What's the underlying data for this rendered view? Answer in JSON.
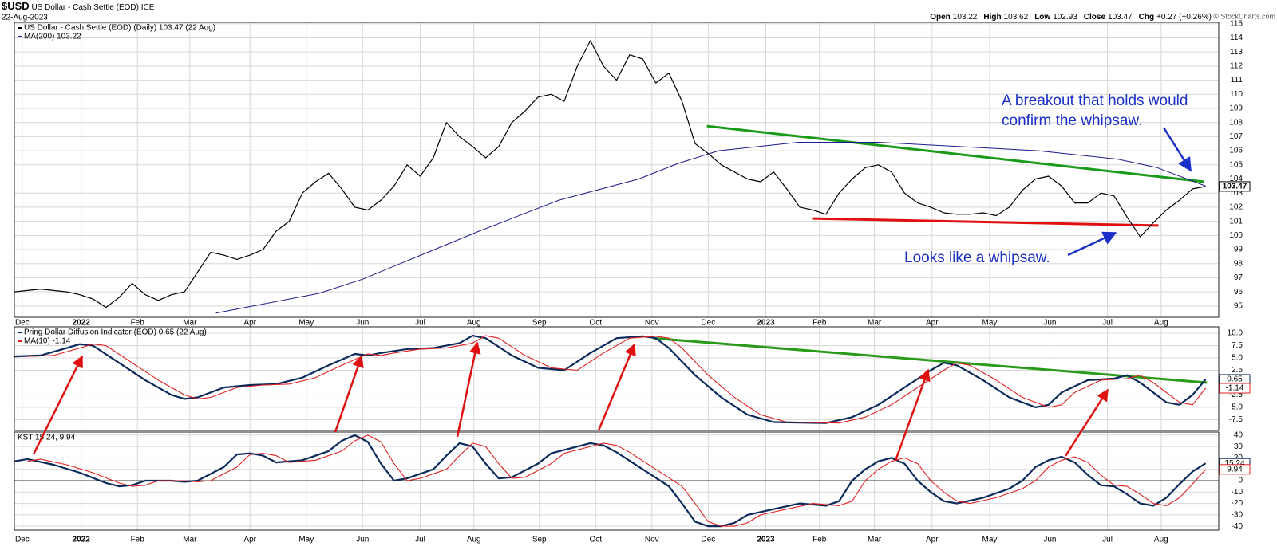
{
  "header": {
    "symbol": "$USD",
    "name": "US Dollar - Cash Settle (EOD) ICE",
    "date": "22-Aug-2023",
    "quote": [
      {
        "label": "Open",
        "value": "103.22"
      },
      {
        "label": "High",
        "value": "103.62"
      },
      {
        "label": "Low",
        "value": "102.93"
      },
      {
        "label": "Close",
        "value": "103.47"
      },
      {
        "label": "Chg",
        "value": "+0.27 (+0.26%)"
      }
    ],
    "copyright": "© StockCharts.com"
  },
  "chart_data": [
    {
      "type": "line",
      "xlim": [
        0,
        92
      ],
      "xticks": [
        {
          "value": 0.6,
          "label": "Dec"
        },
        {
          "value": 5.1,
          "label": "2022"
        },
        {
          "value": 9.4,
          "label": "Feb"
        },
        {
          "value": 13.4,
          "label": "Mar"
        },
        {
          "value": 18.0,
          "label": "Apr"
        },
        {
          "value": 22.3,
          "label": "May"
        },
        {
          "value": 26.6,
          "label": "Jun"
        },
        {
          "value": 31.0,
          "label": "Jul"
        },
        {
          "value": 35.1,
          "label": "Aug"
        },
        {
          "value": 40.1,
          "label": "Sep"
        },
        {
          "value": 44.4,
          "label": "Oct"
        },
        {
          "value": 48.7,
          "label": "Nov"
        },
        {
          "value": 53.0,
          "label": "Dec"
        },
        {
          "value": 57.4,
          "label": "2023"
        },
        {
          "value": 61.5,
          "label": "Feb"
        },
        {
          "value": 65.7,
          "label": "Mar"
        },
        {
          "value": 70.1,
          "label": "Apr"
        },
        {
          "value": 74.5,
          "label": "May"
        },
        {
          "value": 79.1,
          "label": "Jun"
        },
        {
          "value": 83.5,
          "label": "Jul"
        },
        {
          "value": 87.6,
          "label": "Aug"
        }
      ],
      "ylim": [
        94.2,
        115.1
      ],
      "yticks": [
        95,
        96,
        97,
        98,
        99,
        100,
        101,
        102,
        103,
        104,
        105,
        106,
        107,
        108,
        109,
        110,
        111,
        112,
        113,
        114,
        115
      ],
      "grid": true,
      "series": [
        {
          "name": "US Dollar - Cash Settle (EOD) (Daily) 103.47 (22 Aug)",
          "color": "#000000",
          "last_box": true,
          "x": [
            0,
            1,
            2,
            3,
            4,
            5,
            6,
            7,
            8,
            9,
            10,
            11,
            12,
            13,
            14,
            15,
            16,
            17,
            18,
            19,
            20,
            21,
            22,
            23,
            24,
            25,
            26,
            27,
            28,
            29,
            30,
            31,
            32,
            33,
            34,
            35,
            36,
            37,
            38,
            39,
            40,
            41,
            42,
            43,
            44,
            45,
            46,
            47,
            48,
            49,
            50,
            51,
            52,
            53,
            54,
            55,
            56,
            57,
            58,
            59,
            60,
            61,
            62,
            63,
            64,
            65,
            66,
            67,
            68,
            69,
            70,
            71,
            72,
            73,
            74,
            75,
            76,
            77,
            78,
            79,
            80,
            81,
            82,
            83,
            84,
            85,
            86,
            87,
            88,
            89,
            90,
            91
          ],
          "values": [
            96.0,
            96.1,
            96.2,
            96.1,
            96.0,
            95.8,
            95.5,
            94.9,
            95.6,
            96.6,
            95.8,
            95.4,
            95.8,
            96.0,
            97.4,
            98.8,
            98.6,
            98.3,
            98.6,
            99.0,
            100.3,
            101.0,
            103.0,
            103.8,
            104.4,
            103.3,
            102.0,
            101.8,
            102.5,
            103.5,
            105.0,
            104.2,
            105.5,
            108.0,
            107.0,
            106.3,
            105.5,
            106.3,
            108.0,
            108.8,
            109.8,
            110.0,
            109.5,
            112.0,
            113.8,
            112.0,
            111.0,
            112.8,
            112.5,
            110.8,
            111.5,
            109.5,
            106.5,
            105.8,
            105.0,
            104.5,
            104.0,
            103.8,
            104.5,
            103.3,
            102.0,
            101.8,
            101.5,
            103.0,
            104.0,
            104.8,
            105.0,
            104.5,
            103.0,
            102.3,
            102.0,
            101.6,
            101.5,
            101.5,
            101.6,
            101.4,
            102.0,
            103.2,
            104.0,
            104.2,
            103.5,
            102.3,
            102.3,
            103.0,
            102.8,
            101.3,
            99.9,
            100.9,
            101.8,
            102.5,
            103.3,
            103.47
          ]
        },
        {
          "name": "MA(200) 103.22",
          "color": "#1c1c8c",
          "x": [
            15.4,
            23.3,
            26.6,
            35.5,
            41.6,
            47.7,
            50.7,
            53.8,
            59.9,
            66.0,
            72.1,
            78.2,
            84.3,
            87.3,
            91
          ],
          "values": [
            94.5,
            95.9,
            96.9,
            100.3,
            102.5,
            104.0,
            105.1,
            106.0,
            106.6,
            106.6,
            106.3,
            106.0,
            105.4,
            104.8,
            103.5
          ]
        }
      ],
      "trendlines": [
        {
          "color": "#1a9a1a",
          "points": [
            [
              52.9,
              107.75
            ],
            [
              90.9,
              103.8
            ]
          ]
        },
        {
          "color": "#e01010",
          "points": [
            [
              61.0,
              101.2
            ],
            [
              87.4,
              100.7
            ]
          ]
        }
      ],
      "annotations": [
        {
          "lines": [
            "A breakout that holds would",
            "confirm the whipsaw."
          ]
        },
        {
          "lines": [
            "Looks like a whipsaw."
          ]
        }
      ]
    },
    {
      "type": "line",
      "ylim": [
        -9.7,
        11.3
      ],
      "yticks": [
        {
          "value": 10,
          "label": "10.0"
        },
        7.5,
        {
          "value": 5,
          "label": "5.0"
        },
        2.5,
        -2.5,
        {
          "value": -5,
          "label": "-5.0"
        },
        -7.5
      ],
      "grid": true,
      "series": [
        {
          "name": "Pring Dollar Diffusion Indicator (EOD) 0.65 (22 Aug)",
          "color": "#0b2a5c",
          "last_box": true,
          "x": [
            0,
            2,
            4,
            5,
            6,
            8,
            10,
            12,
            13,
            14,
            16,
            18,
            20,
            22,
            24,
            26,
            27,
            28,
            30,
            32,
            34,
            35,
            36,
            38,
            40,
            42,
            44,
            46,
            48,
            49,
            50,
            52,
            54,
            56,
            58,
            60,
            62,
            64,
            66,
            68,
            70,
            71,
            72,
            74,
            76,
            78,
            79,
            80,
            82,
            84,
            85,
            86,
            88,
            89,
            90,
            91
          ],
          "values": [
            5.3,
            5.5,
            7.0,
            7.8,
            7.5,
            4.0,
            0.5,
            -2.5,
            -3.3,
            -3.0,
            -1.0,
            -0.5,
            -0.3,
            1.0,
            3.5,
            5.8,
            5.5,
            6.0,
            6.8,
            7.0,
            8.0,
            9.5,
            9.0,
            5.5,
            3.0,
            2.5,
            6.0,
            9.0,
            9.4,
            9.0,
            7.0,
            1.5,
            -3.0,
            -6.5,
            -8.0,
            -8.1,
            -8.2,
            -7.0,
            -4.5,
            -1.0,
            2.5,
            4.0,
            3.5,
            0.5,
            -3.0,
            -5.0,
            -4.5,
            -2.0,
            0.5,
            0.8,
            1.5,
            0.0,
            -4.0,
            -4.5,
            -2.5,
            0.65
          ]
        },
        {
          "name": "MA(10) -1.14",
          "color": "#e02020",
          "last_box": true,
          "x": [
            1,
            3,
            5,
            6,
            7,
            9,
            11,
            13,
            14,
            15,
            17,
            19,
            21,
            23,
            25,
            27,
            28,
            29,
            31,
            33,
            35,
            36,
            37,
            39,
            41,
            43,
            45,
            47,
            49,
            50,
            51,
            53,
            55,
            57,
            59,
            61,
            63,
            65,
            67,
            69,
            71,
            72,
            73,
            75,
            77,
            79,
            80,
            81,
            83,
            85,
            86,
            87,
            89,
            90,
            91
          ],
          "values": [
            5.3,
            5.5,
            7.0,
            7.8,
            7.5,
            4.0,
            0.5,
            -2.5,
            -3.3,
            -3.0,
            -1.0,
            -0.5,
            -0.3,
            1.0,
            3.5,
            5.8,
            5.5,
            6.0,
            6.8,
            7.0,
            8.0,
            9.5,
            9.0,
            5.5,
            3.0,
            2.5,
            6.0,
            9.0,
            9.4,
            9.0,
            7.0,
            1.5,
            -3.0,
            -6.5,
            -8.0,
            -8.1,
            -8.2,
            -7.0,
            -4.5,
            -1.0,
            2.5,
            4.0,
            3.5,
            0.5,
            -3.0,
            -5.0,
            -4.5,
            -2.0,
            0.5,
            0.8,
            1.5,
            0.0,
            -4.0,
            -4.5,
            -1.14
          ]
        }
      ],
      "trendlines": [
        {
          "color": "#2a9a1a",
          "points": [
            [
              48.8,
              9.0
            ],
            [
              91.1,
              0.0
            ]
          ]
        }
      ]
    },
    {
      "type": "line",
      "legend": "KST 15.24, 9.94",
      "xlim": [
        0,
        92
      ],
      "xticks": [
        {
          "value": 0.6,
          "label": "Dec"
        },
        {
          "value": 5.1,
          "label": "2022"
        },
        {
          "value": 9.4,
          "label": "Feb"
        },
        {
          "value": 13.4,
          "label": "Mar"
        },
        {
          "value": 18.0,
          "label": "Apr"
        },
        {
          "value": 22.3,
          "label": "May"
        },
        {
          "value": 26.6,
          "label": "Jun"
        },
        {
          "value": 31.0,
          "label": "Jul"
        },
        {
          "value": 35.1,
          "label": "Aug"
        },
        {
          "value": 40.1,
          "label": "Sep"
        },
        {
          "value": 44.4,
          "label": "Oct"
        },
        {
          "value": 48.7,
          "label": "Nov"
        },
        {
          "value": 53.0,
          "label": "Dec"
        },
        {
          "value": 57.4,
          "label": "2023"
        },
        {
          "value": 61.5,
          "label": "Feb"
        },
        {
          "value": 65.7,
          "label": "Mar"
        },
        {
          "value": 70.1,
          "label": "Apr"
        },
        {
          "value": 74.5,
          "label": "May"
        },
        {
          "value": 79.1,
          "label": "Jun"
        },
        {
          "value": 83.5,
          "label": "Jul"
        },
        {
          "value": 87.6,
          "label": "Aug"
        }
      ],
      "ylim": [
        -43.4,
        42.7
      ],
      "yticks": [
        40,
        30,
        20,
        10,
        0,
        -10,
        -20,
        -30,
        -40
      ],
      "grid": true,
      "series": [
        {
          "color": "#0b2a5c",
          "last_box": true,
          "x": [
            0,
            1,
            3,
            5,
            7,
            8,
            9,
            10,
            12,
            13,
            14,
            16,
            17,
            18,
            19,
            20,
            22,
            24,
            25,
            26,
            27,
            28,
            29,
            30,
            32,
            33,
            34,
            35,
            36,
            37,
            38,
            40,
            41,
            42,
            44,
            45,
            46,
            48,
            50,
            51,
            52,
            53,
            54,
            55,
            56,
            58,
            60,
            62,
            63,
            64,
            65,
            66,
            67,
            68,
            69,
            70,
            71,
            72,
            74,
            76,
            77,
            78,
            79,
            80,
            81,
            82,
            83,
            84,
            85,
            86,
            87,
            88,
            89,
            90,
            91
          ],
          "values": [
            17,
            19,
            14,
            7,
            -2,
            -5,
            -4,
            0,
            0,
            -1,
            0,
            12,
            23,
            24,
            22,
            16,
            18,
            26,
            35,
            40,
            34,
            15,
            0,
            2,
            10,
            22,
            33,
            30,
            15,
            2,
            3,
            15,
            24,
            27,
            33,
            31,
            25,
            10,
            -5,
            -20,
            -36,
            -40,
            -40,
            -37,
            -30,
            -25,
            -20,
            -22,
            -18,
            0,
            10,
            17,
            20,
            15,
            0,
            -10,
            -18,
            -20,
            -15,
            -7,
            0,
            12,
            18,
            21,
            16,
            5,
            -4,
            -5,
            -12,
            -20,
            -22,
            -15,
            -3,
            8,
            15.24
          ]
        },
        {
          "color": "#e02020",
          "last_box": true,
          "x": [
            1,
            2,
            4,
            6,
            8,
            9,
            10,
            11,
            13,
            14,
            15,
            17,
            18,
            19,
            20,
            21,
            23,
            25,
            26,
            27,
            28,
            29,
            30,
            31,
            33,
            34,
            35,
            36,
            37,
            38,
            39,
            41,
            42,
            43,
            45,
            46,
            47,
            49,
            51,
            52,
            53,
            54,
            55,
            56,
            57,
            59,
            61,
            63,
            64,
            65,
            66,
            67,
            68,
            69,
            70,
            71,
            72,
            73,
            75,
            77,
            78,
            79,
            80,
            81,
            82,
            83,
            84,
            85,
            86,
            87,
            88,
            89,
            90,
            91
          ],
          "values": [
            17,
            19,
            14,
            7,
            -2,
            -5,
            -4,
            0,
            0,
            -1,
            0,
            12,
            23,
            24,
            22,
            16,
            18,
            26,
            35,
            40,
            34,
            15,
            0,
            2,
            10,
            22,
            33,
            30,
            15,
            2,
            3,
            15,
            24,
            27,
            33,
            31,
            25,
            10,
            -5,
            -20,
            -36,
            -40,
            -40,
            -37,
            -30,
            -25,
            -20,
            -22,
            -18,
            0,
            10,
            17,
            20,
            15,
            0,
            -10,
            -18,
            -20,
            -15,
            -7,
            0,
            12,
            18,
            21,
            16,
            5,
            -4,
            -5,
            -12,
            -20,
            -22,
            -15,
            -3,
            9.94
          ]
        }
      ]
    }
  ]
}
